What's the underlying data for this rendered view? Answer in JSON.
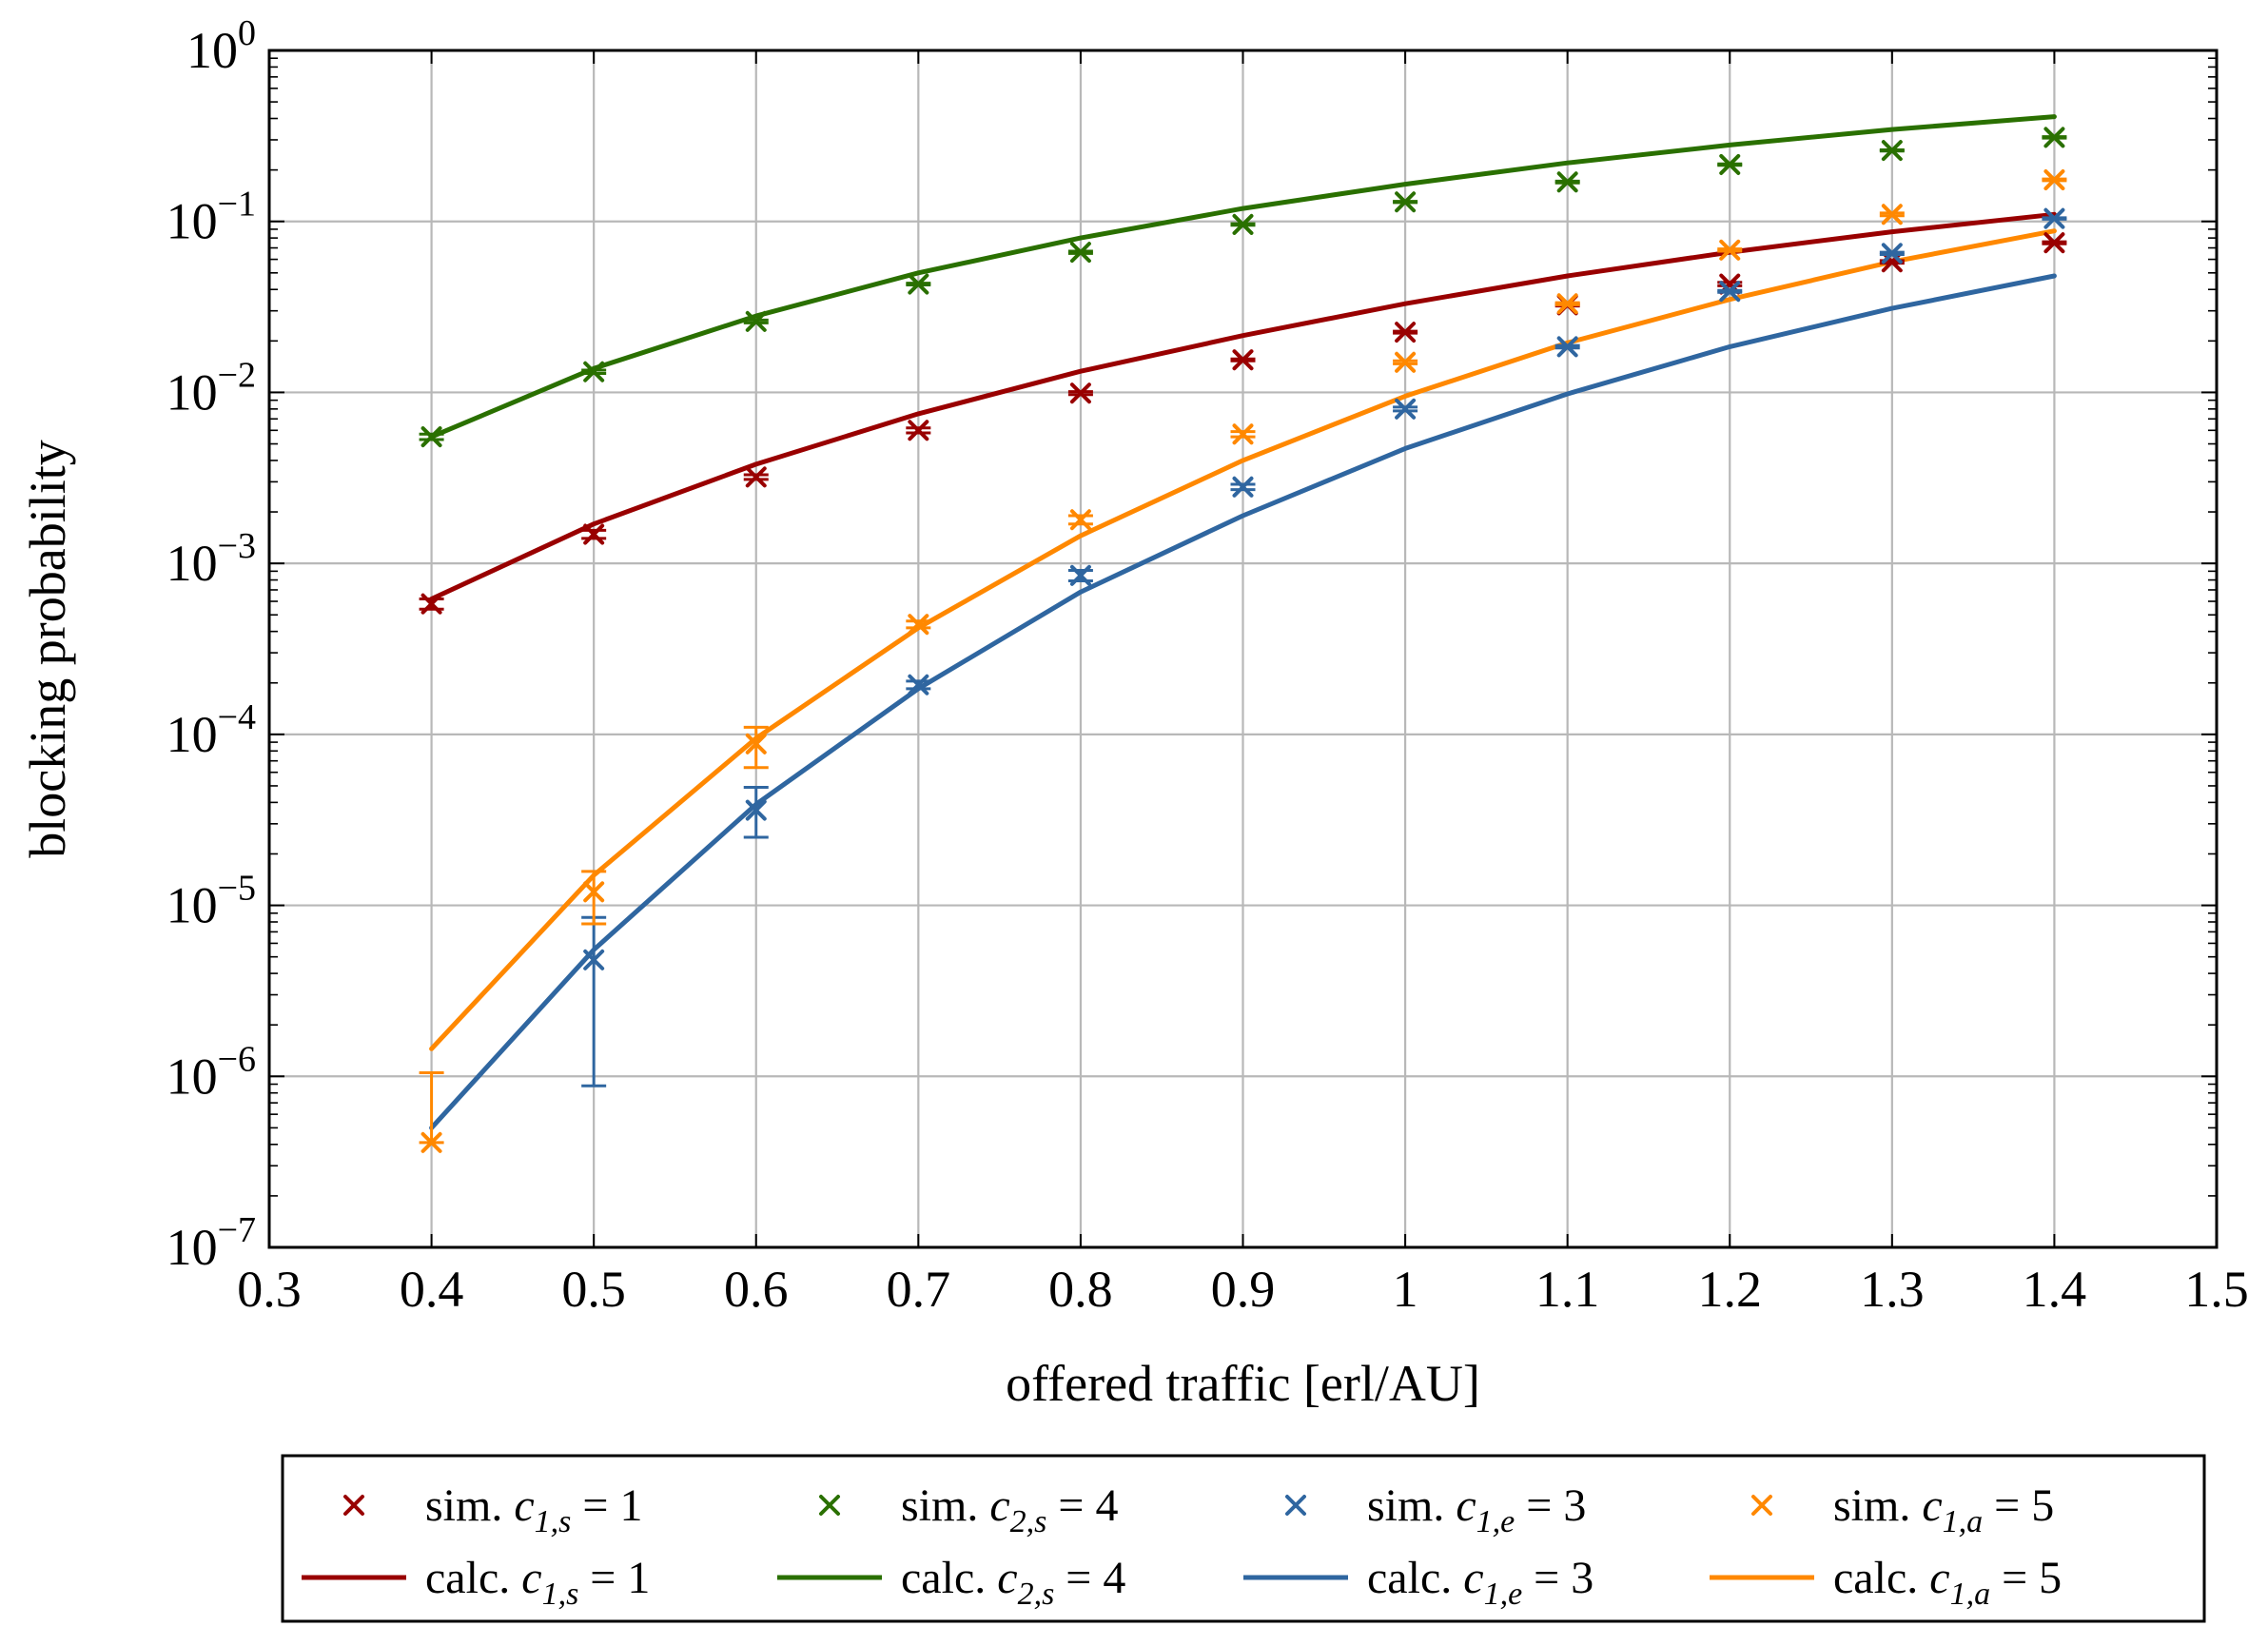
{
  "chart_data": {
    "type": "line",
    "xlabel": "offered traffic [erl/AU]",
    "ylabel": "blocking probability",
    "xlim": [
      0.3,
      1.5
    ],
    "ylim_log10": [
      -7,
      0
    ],
    "yscale": "log",
    "grid": true,
    "legend_position": "below",
    "x_ticks": [
      0.3,
      0.4,
      0.5,
      0.6,
      0.7,
      0.8,
      0.9,
      1,
      1.1,
      1.2,
      1.3,
      1.4,
      1.5
    ],
    "x_tick_labels": [
      "0.3",
      "0.4",
      "0.5",
      "0.6",
      "0.7",
      "0.8",
      "0.9",
      "1",
      "1.1",
      "1.2",
      "1.3",
      "1.4",
      "1.5"
    ],
    "y_ticks_exp": [
      0,
      -1,
      -2,
      -3,
      -4,
      -5,
      -6,
      -7
    ],
    "y_tick_base": "10",
    "y_tick_exponents": [
      "0",
      "−1",
      "−2",
      "−3",
      "−4",
      "−5",
      "−6",
      "−7"
    ],
    "series": [
      {
        "name": "sim. c1,s = 1",
        "legend": {
          "prefix": "sim.",
          "var": "c",
          "sub": "1,s",
          "rel": "= 1"
        },
        "kind": "scatter",
        "color": "#990000",
        "x": [
          0.4,
          0.5,
          0.6,
          0.7,
          0.8,
          0.9,
          1.0,
          1.1,
          1.2,
          1.3,
          1.4
        ],
        "y": [
          0.00058,
          0.00148,
          0.0032,
          0.006,
          0.0099,
          0.0155,
          0.0225,
          0.0325,
          0.043,
          0.058,
          0.075
        ],
        "err_low": [
          0.00054,
          0.0014,
          0.0031,
          0.0058,
          0.0097,
          0.0153,
          0.0222,
          0.032,
          0.042,
          0.057,
          0.074
        ],
        "err_high": [
          0.00062,
          0.00156,
          0.0033,
          0.0062,
          0.0101,
          0.0157,
          0.0228,
          0.033,
          0.044,
          0.059,
          0.076
        ]
      },
      {
        "name": "sim. c2,s = 4",
        "legend": {
          "prefix": "sim.",
          "var": "c",
          "sub": "2,s",
          "rel": "= 4"
        },
        "kind": "scatter",
        "color": "#2a7000",
        "x": [
          0.4,
          0.5,
          0.6,
          0.7,
          0.8,
          0.9,
          1.0,
          1.1,
          1.2,
          1.3,
          1.4
        ],
        "y": [
          0.0055,
          0.0132,
          0.026,
          0.043,
          0.066,
          0.096,
          0.13,
          0.17,
          0.215,
          0.26,
          0.31
        ],
        "err_low": [
          0.0053,
          0.0129,
          0.0255,
          0.0425,
          0.065,
          0.095,
          0.129,
          0.168,
          0.213,
          0.258,
          0.307
        ],
        "err_high": [
          0.0057,
          0.0135,
          0.0265,
          0.0435,
          0.067,
          0.097,
          0.131,
          0.172,
          0.217,
          0.262,
          0.313
        ]
      },
      {
        "name": "sim. c1,e = 3",
        "legend": {
          "prefix": "sim.",
          "var": "c",
          "sub": "1,e",
          "rel": "= 3"
        },
        "kind": "scatter",
        "color": "#2f66a0",
        "x": [
          0.4,
          0.5,
          0.6,
          0.7,
          0.8,
          0.9,
          1.0,
          1.1,
          1.2,
          1.3,
          1.4
        ],
        "y": [
          null,
          4.8e-06,
          3.6e-05,
          0.000195,
          0.00085,
          0.0028,
          0.008,
          0.0185,
          0.039,
          0.065,
          0.104
        ],
        "err_low": [
          null,
          8.8e-07,
          2.5e-05,
          0.000185,
          0.00079,
          0.0027,
          0.0078,
          0.0182,
          0.0385,
          0.064,
          0.103
        ],
        "err_high": [
          null,
          8.5e-06,
          4.9e-05,
          0.000205,
          0.00091,
          0.0029,
          0.0082,
          0.0188,
          0.0395,
          0.066,
          0.105
        ]
      },
      {
        "name": "sim. c1,a = 5",
        "legend": {
          "prefix": "sim.",
          "var": "c",
          "sub": "1,a",
          "rel": "= 5"
        },
        "kind": "scatter",
        "color": "#ff8800",
        "x": [
          0.4,
          0.5,
          0.6,
          0.7,
          0.8,
          0.9,
          1.0,
          1.1,
          1.2,
          1.3,
          1.4
        ],
        "y": [
          4.1e-07,
          1.2e-05,
          8.8e-05,
          0.00044,
          0.0018,
          0.0057,
          0.015,
          0.033,
          0.068,
          0.11,
          0.175
        ],
        "err_low": [
          4.1e-07,
          7.8e-06,
          6.4e-05,
          0.00042,
          0.0017,
          0.0055,
          0.0147,
          0.0325,
          0.067,
          0.108,
          0.173
        ],
        "err_high": [
          1.05e-06,
          1.58e-05,
          0.00011,
          0.00046,
          0.0019,
          0.0059,
          0.0153,
          0.0335,
          0.069,
          0.112,
          0.177
        ]
      },
      {
        "name": "calc. c1,s = 1",
        "legend": {
          "prefix": "calc.",
          "var": "c",
          "sub": "1,s",
          "rel": "= 1"
        },
        "kind": "line",
        "color": "#990000",
        "x": [
          0.4,
          0.5,
          0.6,
          0.7,
          0.8,
          0.9,
          1.0,
          1.1,
          1.2,
          1.3,
          1.4
        ],
        "y": [
          0.00062,
          0.0017,
          0.0038,
          0.0075,
          0.0133,
          0.0215,
          0.033,
          0.048,
          0.066,
          0.087,
          0.11
        ]
      },
      {
        "name": "calc. c2,s = 4",
        "legend": {
          "prefix": "calc.",
          "var": "c",
          "sub": "2,s",
          "rel": "= 4"
        },
        "kind": "line",
        "color": "#2a7000",
        "x": [
          0.4,
          0.5,
          0.6,
          0.7,
          0.8,
          0.9,
          1.0,
          1.1,
          1.2,
          1.3,
          1.4
        ],
        "y": [
          0.0055,
          0.0138,
          0.028,
          0.05,
          0.08,
          0.119,
          0.165,
          0.22,
          0.28,
          0.345,
          0.41
        ]
      },
      {
        "name": "calc. c1,e = 3",
        "legend": {
          "prefix": "calc.",
          "var": "c",
          "sub": "1,e",
          "rel": "= 3"
        },
        "kind": "line",
        "color": "#2f66a0",
        "x": [
          0.4,
          0.5,
          0.6,
          0.7,
          0.8,
          0.9,
          1.0,
          1.1,
          1.2,
          1.3,
          1.4
        ],
        "y": [
          5e-07,
          5.5e-06,
          3.9e-05,
          0.000185,
          0.00068,
          0.0019,
          0.0047,
          0.0098,
          0.0185,
          0.031,
          0.048
        ]
      },
      {
        "name": "calc. c1,a = 5",
        "legend": {
          "prefix": "calc.",
          "var": "c",
          "sub": "1,a",
          "rel": "= 5"
        },
        "kind": "line",
        "color": "#ff8800",
        "x": [
          0.4,
          0.5,
          0.6,
          0.7,
          0.8,
          0.9,
          1.0,
          1.1,
          1.2,
          1.3,
          1.4
        ],
        "y": [
          1.45e-06,
          1.5e-05,
          9.5e-05,
          0.00042,
          0.00145,
          0.004,
          0.0095,
          0.0195,
          0.035,
          0.058,
          0.088
        ]
      }
    ]
  }
}
